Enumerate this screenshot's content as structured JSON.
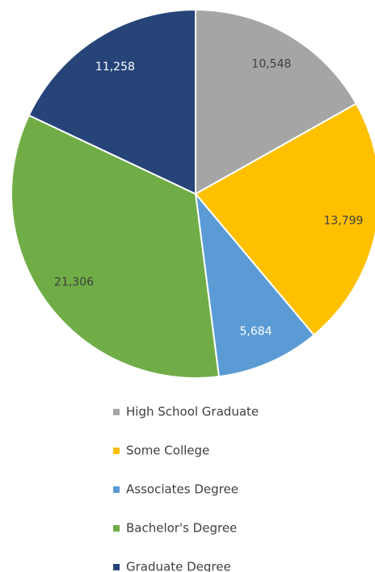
{
  "chart_data": {
    "type": "pie",
    "categories": [
      "High School Graduate",
      "Some College",
      "Associates Degree",
      "Bachelor's Degree",
      "Graduate Degree"
    ],
    "values": [
      10548,
      13799,
      5684,
      21306,
      11258
    ],
    "value_labels": [
      "10,548",
      "13,799",
      "5,684",
      "21,306",
      "11,258"
    ],
    "colors": [
      "#a5a5a5",
      "#ffc000",
      "#5b9bd5",
      "#70ad47",
      "#264478"
    ],
    "label_colors": [
      "#404040",
      "#404040",
      "#ffffff",
      "#404040",
      "#ffffff"
    ],
    "legend": "bottom"
  }
}
